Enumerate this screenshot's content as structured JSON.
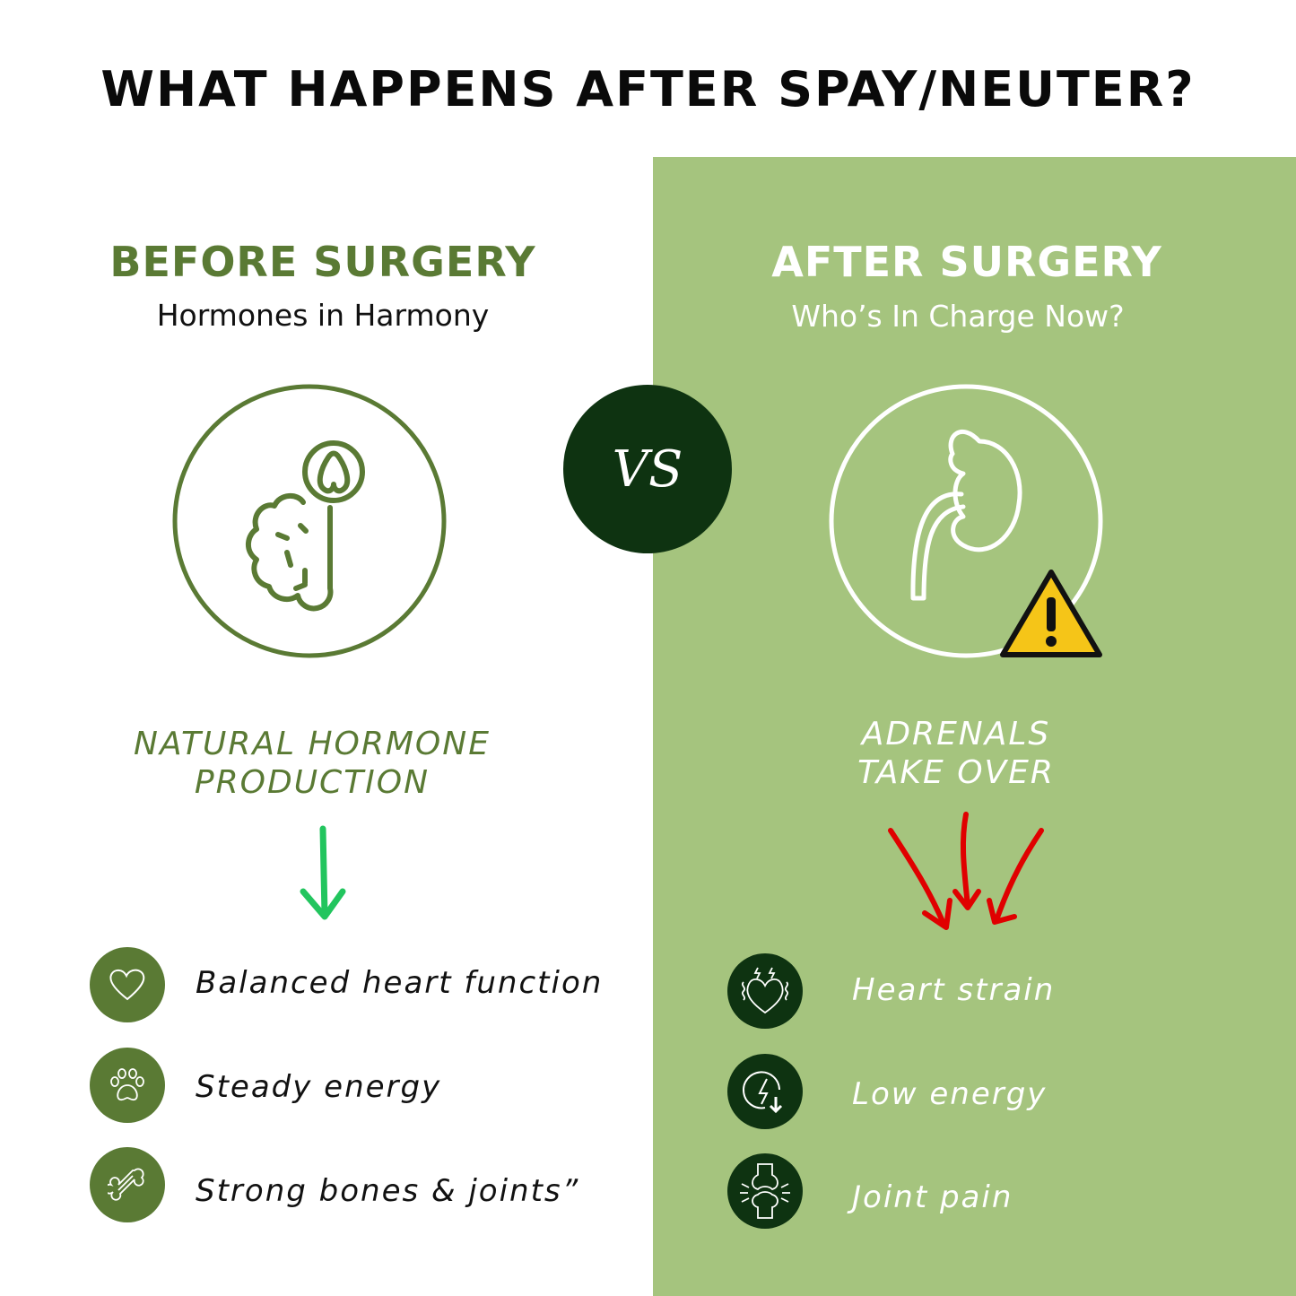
{
  "title": "WHAT HAPPENS AFTER SPAY/NEUTER?",
  "colors": {
    "before_green": "#5a7a34",
    "panel_green": "#a5c47e",
    "dark_green": "#0e3311",
    "good_arrow": "#22c55e",
    "bad_arrow": "#e00000",
    "warning": "#f5c518"
  },
  "vs_label": "VS",
  "before": {
    "heading": "BEFORE SURGERY",
    "subheading": "Hormones in Harmony",
    "illustration_icon": "brain-pituitary-icon",
    "result_line1": "NATURAL HORMONE",
    "result_line2": "PRODUCTION",
    "items": [
      {
        "icon": "heart-icon",
        "label": "Balanced heart function"
      },
      {
        "icon": "paw-icon",
        "label": "Steady energy"
      },
      {
        "icon": "bone-icon",
        "label": "Strong bones & joints”"
      }
    ]
  },
  "after": {
    "heading": "AFTER SURGERY",
    "subheading": "Who’s In Charge Now?",
    "illustration_icon": "kidney-adrenal-icon",
    "badge_icon": "warning-icon",
    "result_line1": "ADRENALS",
    "result_line2": "TAKE OVER",
    "items": [
      {
        "icon": "heart-strain-icon",
        "label": "Heart strain"
      },
      {
        "icon": "low-energy-icon",
        "label": "Low energy"
      },
      {
        "icon": "joint-pain-icon",
        "label": "Joint pain"
      }
    ]
  }
}
